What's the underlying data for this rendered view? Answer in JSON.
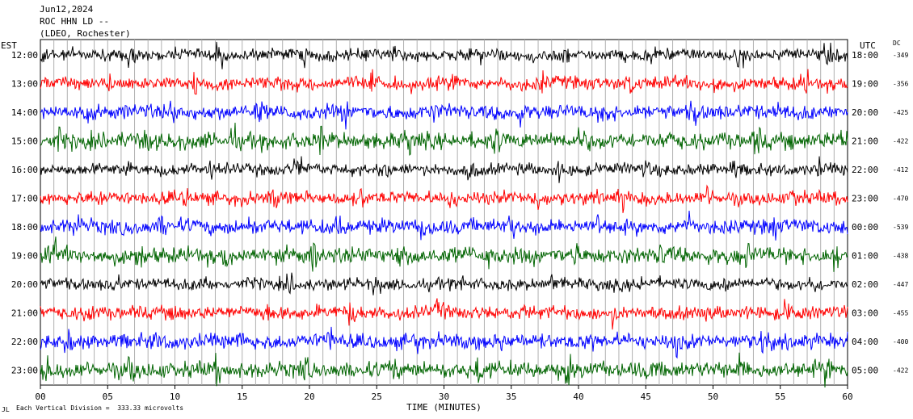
{
  "header": {
    "date": "Jun12,2024",
    "station": "ROC HHN LD --",
    "network": "(LDEO, Rochester)"
  },
  "left_axis_label": "EST",
  "right_axis_label": "UTC",
  "dc_label": "DC",
  "footer": {
    "scale_note": "Each Vertical Division =  333.33 microvolts",
    "mark": "JL"
  },
  "chart_data": {
    "type": "line",
    "title": "",
    "xlabel": "TIME (MINUTES)",
    "ylabel": "",
    "xlim": [
      0,
      60
    ],
    "x_ticks": [
      "00",
      "05",
      "10",
      "15",
      "20",
      "25",
      "30",
      "35",
      "40",
      "45",
      "50",
      "55",
      "60"
    ],
    "colors": [
      "#000000",
      "#ff0000",
      "#0000ff",
      "#006400"
    ],
    "rows": [
      {
        "est": "12:00",
        "utc": "18:00",
        "dc": "-349",
        "color": "#000000"
      },
      {
        "est": "13:00",
        "utc": "19:00",
        "dc": "-356",
        "color": "#ff0000"
      },
      {
        "est": "14:00",
        "utc": "20:00",
        "dc": "-425",
        "color": "#0000ff"
      },
      {
        "est": "15:00",
        "utc": "21:00",
        "dc": "-422",
        "color": "#006400"
      },
      {
        "est": "16:00",
        "utc": "22:00",
        "dc": "-412",
        "color": "#000000"
      },
      {
        "est": "17:00",
        "utc": "23:00",
        "dc": "-470",
        "color": "#ff0000"
      },
      {
        "est": "18:00",
        "utc": "00:00",
        "dc": "-539",
        "color": "#0000ff"
      },
      {
        "est": "19:00",
        "utc": "01:00",
        "dc": "-438",
        "color": "#006400"
      },
      {
        "est": "20:00",
        "utc": "02:00",
        "dc": "-447",
        "color": "#000000"
      },
      {
        "est": "21:00",
        "utc": "03:00",
        "dc": "-455",
        "color": "#ff0000"
      },
      {
        "est": "22:00",
        "utc": "04:00",
        "dc": "-400",
        "color": "#0000ff"
      },
      {
        "est": "23:00",
        "utc": "05:00",
        "dc": "-422",
        "color": "#006400"
      }
    ]
  }
}
